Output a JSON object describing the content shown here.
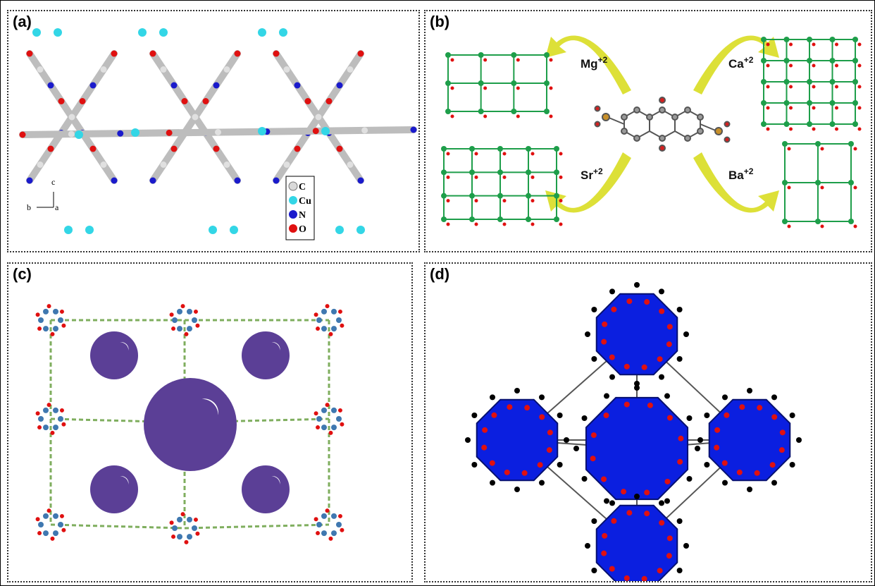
{
  "figure": {
    "panels": [
      {
        "label": "(a)"
      },
      {
        "label": "(b)"
      },
      {
        "label": "(c)"
      },
      {
        "label": "(d)"
      }
    ]
  },
  "panel_a": {
    "legend": [
      "C",
      "Cu",
      "N",
      "O"
    ],
    "legend_colors": [
      "#d9d9d9",
      "#33d6e6",
      "#1a1acc",
      "#e01010"
    ],
    "axes": {
      "c": "c",
      "b": "b",
      "a": "a"
    }
  },
  "panel_b": {
    "ions": [
      {
        "name": "Mg",
        "charge": "+2"
      },
      {
        "name": "Ca",
        "charge": "+2"
      },
      {
        "name": "Sr",
        "charge": "+2"
      },
      {
        "name": "Ba",
        "charge": "+2"
      }
    ]
  },
  "colors": {
    "cu_cyan": "#33d6e6",
    "oxygen_red": "#e01010",
    "nitrogen_blue": "#1a1acc",
    "carbon_grey": "#bdbdbd",
    "metal_green": "#1e9e4a",
    "arrow_yellow": "#d9dd22",
    "pore_purple": "#5b3f96",
    "linker_green": "#7fae5e",
    "cluster_blue": "#0b1fe0",
    "node_steel": "#3f78b0"
  }
}
